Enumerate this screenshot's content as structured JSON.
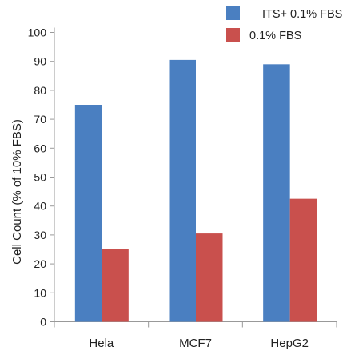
{
  "chart_data": {
    "type": "bar",
    "title": "",
    "xlabel": "",
    "ylabel": "Cell Count (% of 10% FBS)",
    "categories": [
      "Hela",
      "MCF7",
      "HepG2"
    ],
    "series": [
      {
        "name": "ITS+ 0.1% FBS",
        "values": [
          75,
          90.5,
          89
        ],
        "color": "#4a7fc1"
      },
      {
        "name": "0.1% FBS",
        "values": [
          25,
          30.5,
          42.5
        ],
        "color": "#c9504d"
      }
    ],
    "ylim": [
      0,
      100
    ],
    "yticks": [
      0,
      10,
      20,
      30,
      40,
      50,
      60,
      70,
      80,
      90,
      100
    ],
    "grid": false,
    "legend_position": "top-right"
  }
}
